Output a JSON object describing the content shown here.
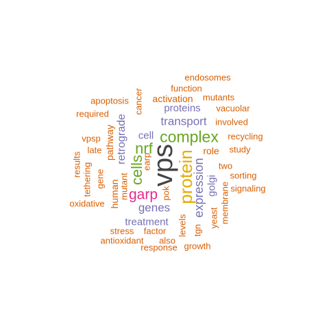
{
  "colors": {
    "orange": "#d95f02",
    "purple": "#7570b3",
    "green": "#66a61e",
    "gold": "#e6ab02",
    "magenta": "#e7298a",
    "dark": "#444444"
  },
  "words": [
    {
      "text": "vps",
      "weight": 10,
      "color": "dark"
    },
    {
      "text": "protein",
      "weight": 8.5,
      "color": "gold"
    },
    {
      "text": "complex",
      "weight": 7,
      "color": "green"
    },
    {
      "text": "cells",
      "weight": 6,
      "color": "green"
    },
    {
      "text": "nrf",
      "weight": 6,
      "color": "green"
    },
    {
      "text": "garp",
      "weight": 6,
      "color": "magenta"
    },
    {
      "text": "expression",
      "weight": 5,
      "color": "purple"
    },
    {
      "text": "transport",
      "weight": 5,
      "color": "purple"
    },
    {
      "text": "genes",
      "weight": 5,
      "color": "purple"
    },
    {
      "text": "retrograde",
      "weight": 4.5,
      "color": "purple"
    },
    {
      "text": "proteins",
      "weight": 4.5,
      "color": "purple"
    },
    {
      "text": "treatment",
      "weight": 4.5,
      "color": "purple"
    },
    {
      "text": "cell",
      "weight": 4.5,
      "color": "purple"
    },
    {
      "text": "golgi",
      "weight": 4.5,
      "color": "purple"
    },
    {
      "text": "human",
      "weight": 4,
      "color": "orange"
    },
    {
      "text": "pathway",
      "weight": 4,
      "color": "orange"
    },
    {
      "text": "role",
      "weight": 4,
      "color": "orange"
    },
    {
      "text": "activation",
      "weight": 4,
      "color": "orange"
    },
    {
      "text": "function",
      "weight": 3.5,
      "color": "orange"
    },
    {
      "text": "endosomes",
      "weight": 3.5,
      "color": "orange"
    },
    {
      "text": "mutants",
      "weight": 3.5,
      "color": "orange"
    },
    {
      "text": "vacuolar",
      "weight": 3.5,
      "color": "orange"
    },
    {
      "text": "involved",
      "weight": 3.5,
      "color": "orange"
    },
    {
      "text": "recycling",
      "weight": 3.5,
      "color": "orange"
    },
    {
      "text": "study",
      "weight": 3.5,
      "color": "orange"
    },
    {
      "text": "two",
      "weight": 3.5,
      "color": "orange"
    },
    {
      "text": "sorting",
      "weight": 3.5,
      "color": "orange"
    },
    {
      "text": "signaling",
      "weight": 3.5,
      "color": "orange"
    },
    {
      "text": "membrane",
      "weight": 3.5,
      "color": "orange"
    },
    {
      "text": "yeast",
      "weight": 3.5,
      "color": "orange"
    },
    {
      "text": "tgn",
      "weight": 3.5,
      "color": "orange"
    },
    {
      "text": "levels",
      "weight": 3.5,
      "color": "orange"
    },
    {
      "text": "factor",
      "weight": 3.5,
      "color": "orange"
    },
    {
      "text": "also",
      "weight": 3.5,
      "color": "orange"
    },
    {
      "text": "growth",
      "weight": 3.5,
      "color": "orange"
    },
    {
      "text": "response",
      "weight": 3.5,
      "color": "orange"
    },
    {
      "text": "antioxidant",
      "weight": 3.5,
      "color": "orange"
    },
    {
      "text": "stress",
      "weight": 3.5,
      "color": "orange"
    },
    {
      "text": "oxidative",
      "weight": 3.5,
      "color": "orange"
    },
    {
      "text": "gene",
      "weight": 3.5,
      "color": "orange"
    },
    {
      "text": "tethering",
      "weight": 3.5,
      "color": "orange"
    },
    {
      "text": "results",
      "weight": 3.5,
      "color": "orange"
    },
    {
      "text": "vpsp",
      "weight": 3.5,
      "color": "orange"
    },
    {
      "text": "late",
      "weight": 3.5,
      "color": "orange"
    },
    {
      "text": "required",
      "weight": 3.5,
      "color": "orange"
    },
    {
      "text": "apoptosis",
      "weight": 3.5,
      "color": "orange"
    },
    {
      "text": "cancer",
      "weight": 3.5,
      "color": "orange"
    },
    {
      "text": "mutant",
      "weight": 3.5,
      "color": "orange"
    },
    {
      "text": "earp",
      "weight": 3.5,
      "color": "orange"
    },
    {
      "text": "pok",
      "weight": 3.5,
      "color": "orange"
    }
  ]
}
